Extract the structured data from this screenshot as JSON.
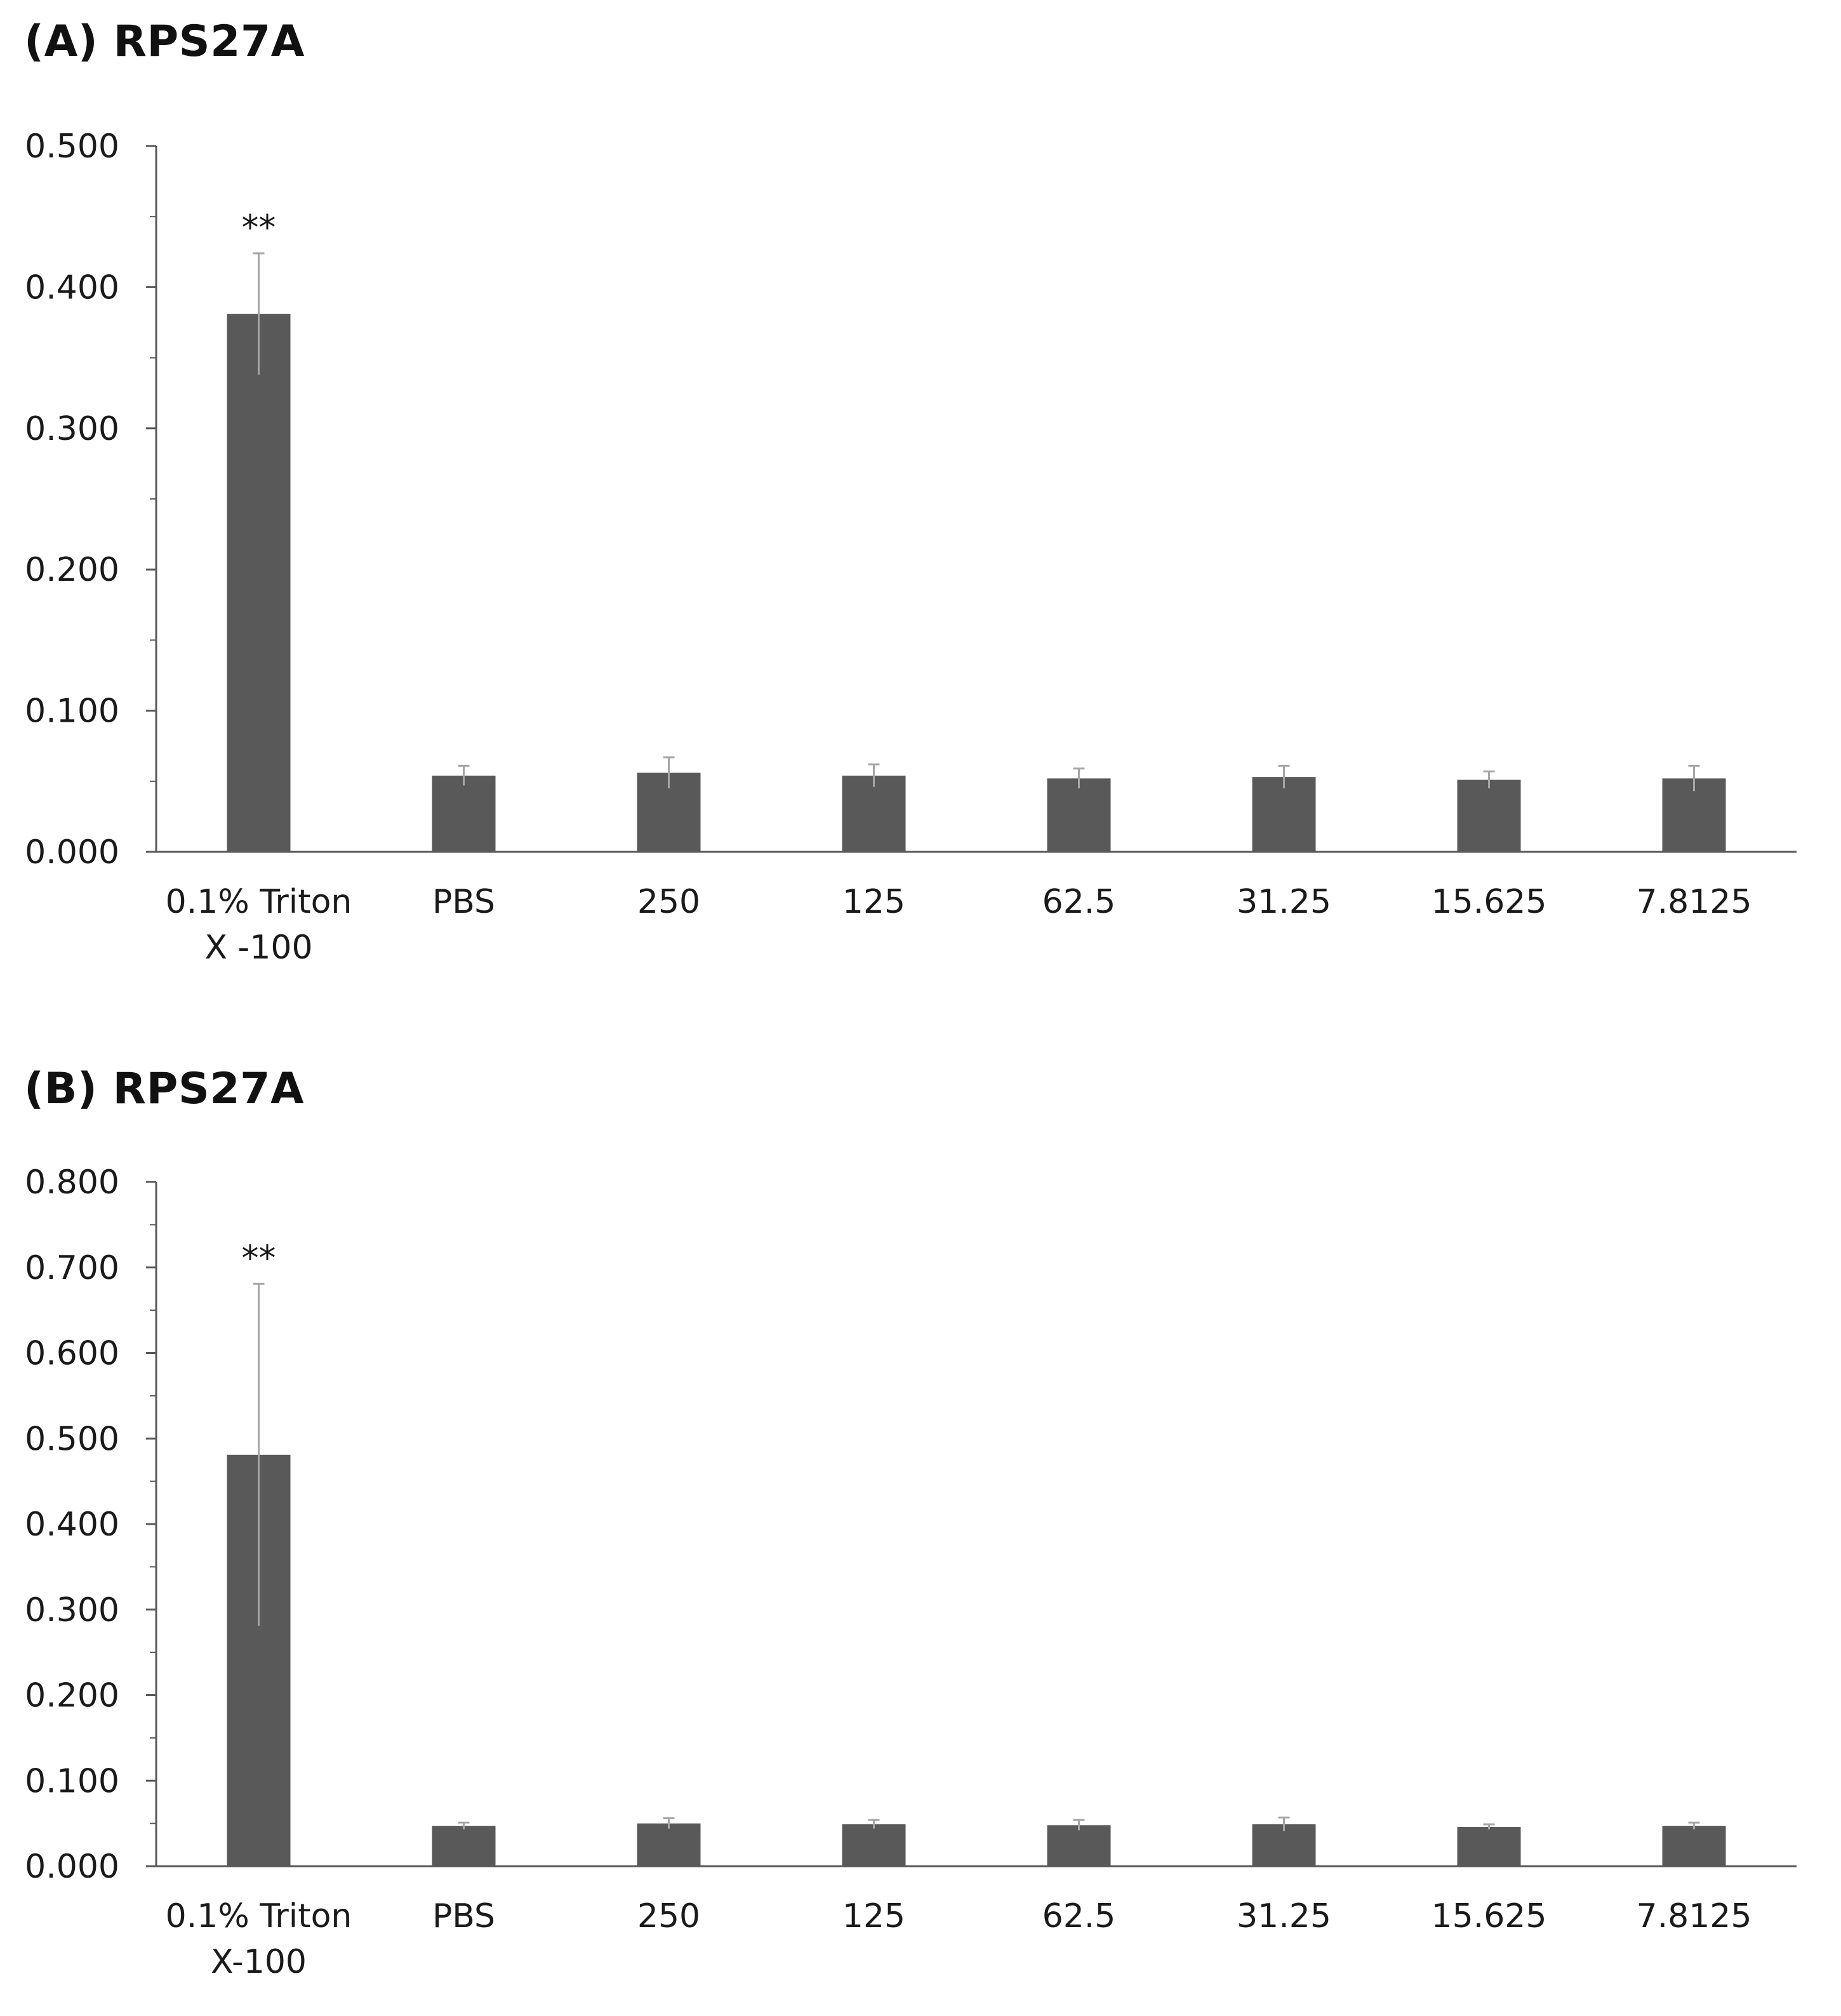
{
  "chart_data": [
    {
      "type": "bar",
      "title": "(A) RPS27A",
      "xlabel": "",
      "ylabel": "",
      "categories": [
        [
          "0.1% Triton",
          "X -100"
        ],
        "PBS",
        "250",
        "125",
        "62.5",
        "31.25",
        "15.625",
        "7.8125"
      ],
      "values": [
        0.381,
        0.054,
        0.056,
        0.054,
        0.052,
        0.053,
        0.051,
        0.052
      ],
      "errors": [
        0.043,
        0.007,
        0.011,
        0.008,
        0.007,
        0.008,
        0.006,
        0.009
      ],
      "annotations": [
        "**",
        "",
        "",
        "",
        "",
        "",
        "",
        ""
      ],
      "ylim": [
        0,
        0.5
      ],
      "yticks": [
        "0.000",
        "0.100",
        "0.200",
        "0.300",
        "0.400",
        "0.500"
      ],
      "bar_color": "#595959",
      "error_color": "#a6a6a6",
      "axis_color": "#595959",
      "grid": false,
      "legend": "none"
    },
    {
      "type": "bar",
      "title": "(B) RPS27A",
      "xlabel": "",
      "ylabel": "",
      "categories": [
        [
          "0.1% Triton",
          "X-100"
        ],
        "PBS",
        "250",
        "125",
        "62.5",
        "31.25",
        "15.625",
        "7.8125"
      ],
      "values": [
        0.481,
        0.047,
        0.05,
        0.049,
        0.048,
        0.049,
        0.046,
        0.047
      ],
      "errors": [
        0.2,
        0.004,
        0.006,
        0.005,
        0.006,
        0.008,
        0.003,
        0.004
      ],
      "annotations": [
        "**",
        "",
        "",
        "",
        "",
        "",
        "",
        ""
      ],
      "ylim": [
        0,
        0.8
      ],
      "yticks": [
        "0.000",
        "0.100",
        "0.200",
        "0.300",
        "0.400",
        "0.500",
        "0.600",
        "0.700",
        "0.800"
      ],
      "bar_color": "#595959",
      "error_color": "#a6a6a6",
      "axis_color": "#595959",
      "grid": false,
      "legend": "none"
    }
  ]
}
